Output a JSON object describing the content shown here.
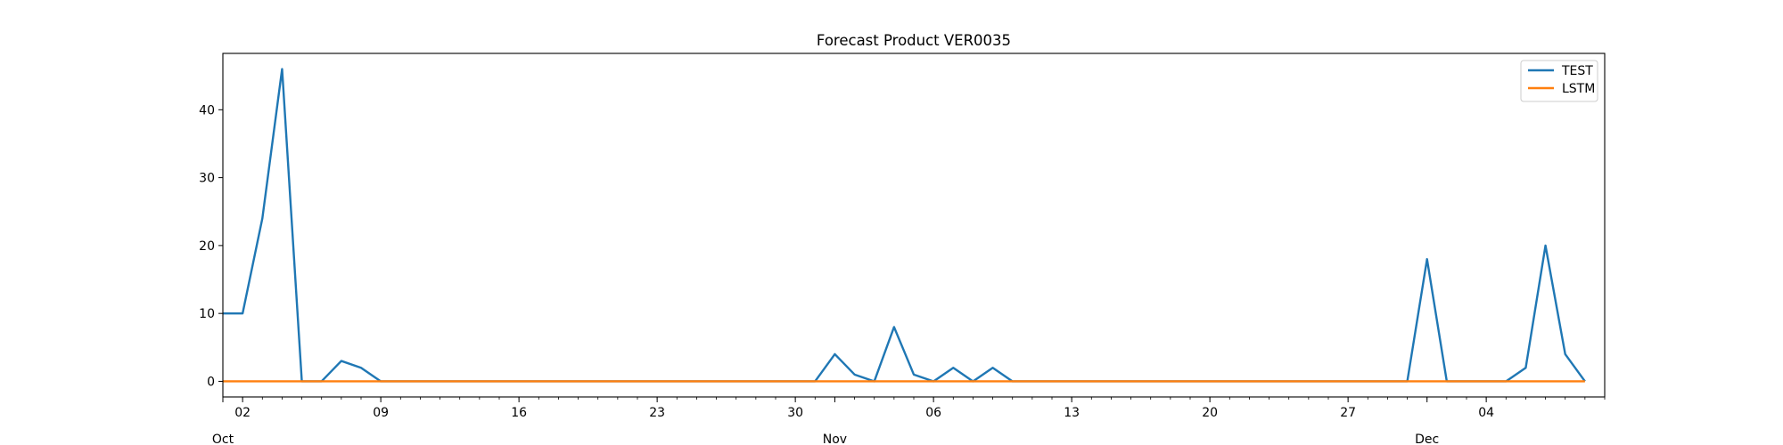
{
  "chart_data": {
    "type": "line",
    "title": "Forecast Product VER0035",
    "xlabel": "",
    "ylabel": "",
    "x_start": "2023-10-01",
    "x_end": "2023-12-10",
    "xlim": [
      "2023-10-01",
      "2023-12-10"
    ],
    "ylim": [
      -2.3,
      48.3
    ],
    "y_ticks": [
      0,
      10,
      20,
      30,
      40
    ],
    "x_ticks": [
      {
        "date": "2023-10-02",
        "label": "02"
      },
      {
        "date": "2023-10-09",
        "label": "09"
      },
      {
        "date": "2023-10-16",
        "label": "16"
      },
      {
        "date": "2023-10-23",
        "label": "23"
      },
      {
        "date": "2023-10-30",
        "label": "30"
      },
      {
        "date": "2023-11-06",
        "label": "06"
      },
      {
        "date": "2023-11-13",
        "label": "13"
      },
      {
        "date": "2023-11-20",
        "label": "20"
      },
      {
        "date": "2023-11-27",
        "label": "27"
      },
      {
        "date": "2023-12-04",
        "label": "04"
      }
    ],
    "month_labels": [
      {
        "date": "2023-10-01",
        "label": "Oct"
      },
      {
        "date": "2023-11-01",
        "label": "Nov"
      },
      {
        "date": "2023-12-01",
        "label": "Dec"
      }
    ],
    "grid": false,
    "legend": "top-right",
    "series": [
      {
        "name": "TEST",
        "color": "#1f77b4",
        "points": [
          [
            "2023-10-01",
            10
          ],
          [
            "2023-10-02",
            10
          ],
          [
            "2023-10-03",
            24
          ],
          [
            "2023-10-04",
            46
          ],
          [
            "2023-10-05",
            0
          ],
          [
            "2023-10-06",
            0
          ],
          [
            "2023-10-07",
            3
          ],
          [
            "2023-10-08",
            2
          ],
          [
            "2023-10-09",
            0
          ],
          [
            "2023-10-31",
            0
          ],
          [
            "2023-11-01",
            4
          ],
          [
            "2023-11-02",
            1
          ],
          [
            "2023-11-03",
            0
          ],
          [
            "2023-11-04",
            8
          ],
          [
            "2023-11-05",
            1
          ],
          [
            "2023-11-06",
            0
          ],
          [
            "2023-11-07",
            2
          ],
          [
            "2023-11-08",
            0
          ],
          [
            "2023-11-09",
            2
          ],
          [
            "2023-11-10",
            0
          ],
          [
            "2023-11-30",
            0
          ],
          [
            "2023-12-01",
            18
          ],
          [
            "2023-12-02",
            0
          ],
          [
            "2023-12-05",
            0
          ],
          [
            "2023-12-06",
            2
          ],
          [
            "2023-12-07",
            20
          ],
          [
            "2023-12-08",
            4
          ],
          [
            "2023-12-09",
            0
          ]
        ]
      },
      {
        "name": "LSTM",
        "color": "#ff7f0e",
        "points": [
          [
            "2023-10-01",
            0
          ],
          [
            "2023-12-09",
            0
          ]
        ]
      }
    ]
  }
}
